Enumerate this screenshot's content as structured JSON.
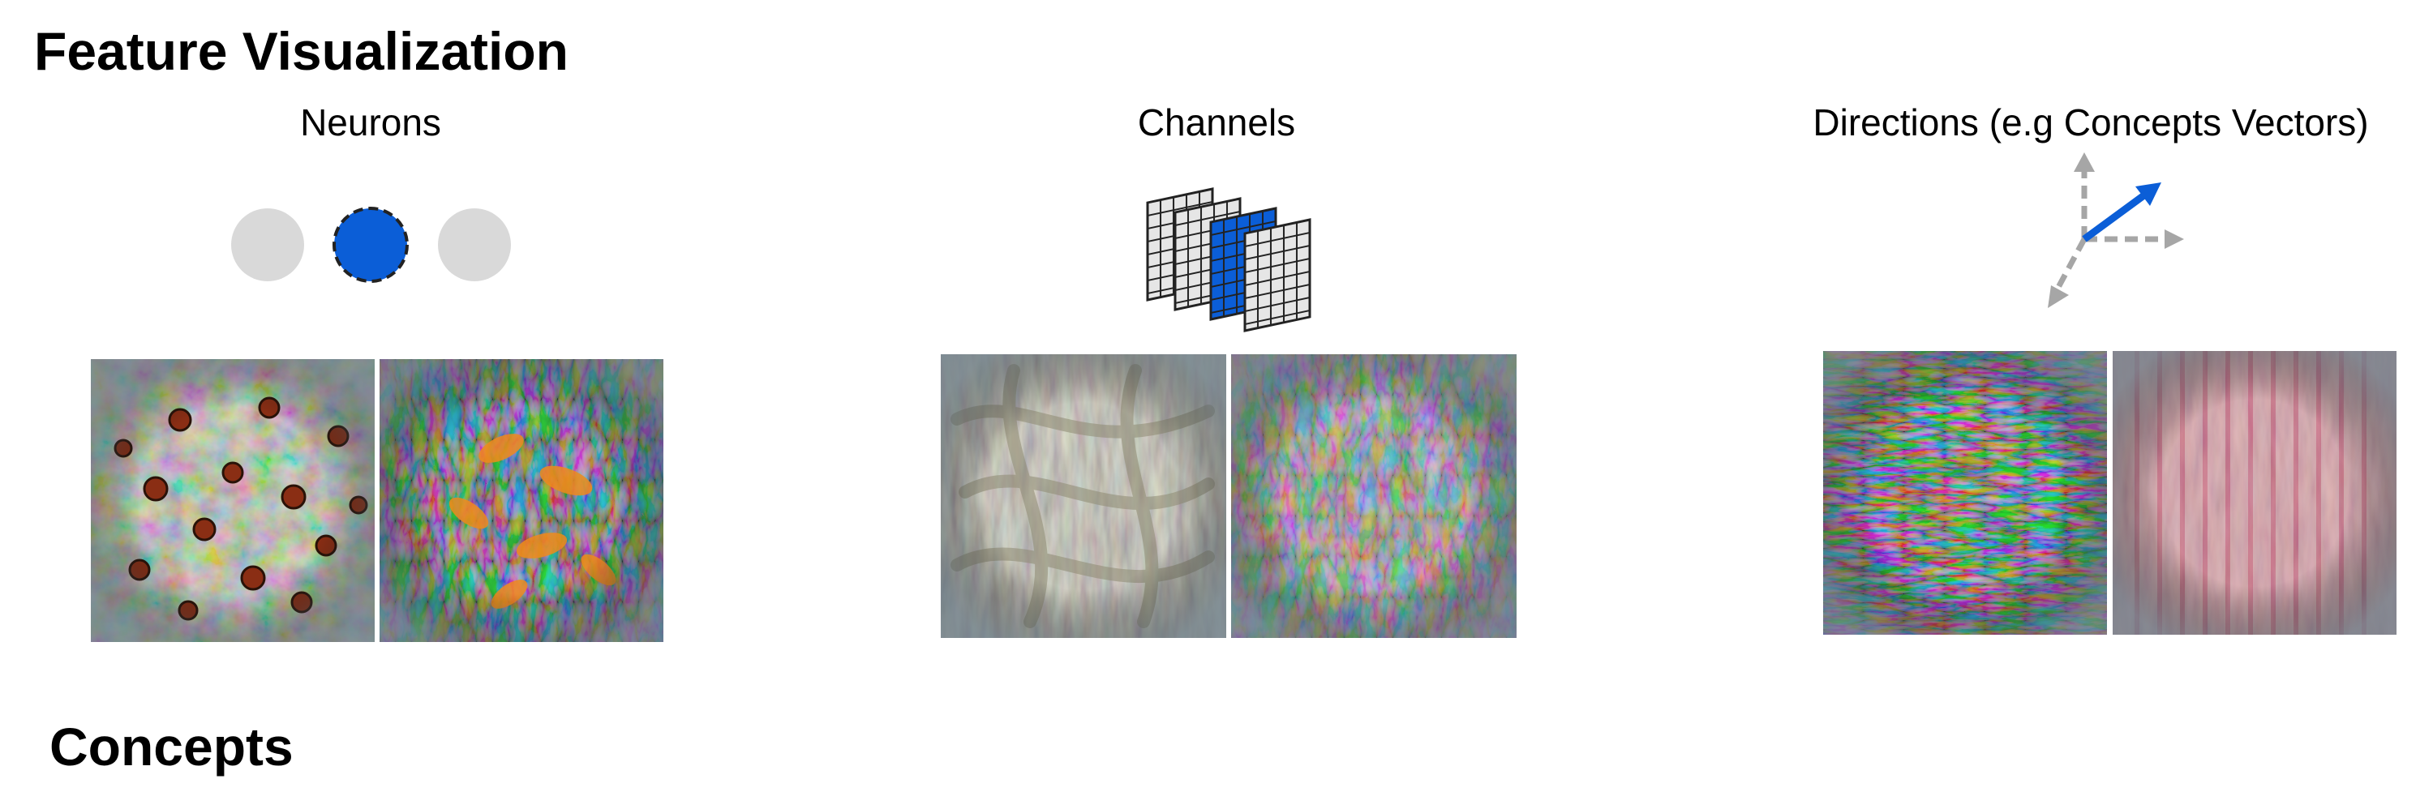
{
  "title": "Feature Visualization",
  "columns": [
    {
      "id": "neurons",
      "label": "Neurons",
      "icon": "neuron-circles-icon",
      "highlight_color": "#0b5ed7",
      "images": [
        "ladybug-feature-visualization-image",
        "goldfish-feature-visualization-image"
      ]
    },
    {
      "id": "channels",
      "label": "Channels",
      "icon": "channel-grids-icon",
      "highlight_color": "#0b5ed7",
      "images": [
        "rope-feature-visualization-image",
        "colorful-texture-feature-visualization-image"
      ]
    },
    {
      "id": "directions",
      "label": "Directions (e.g Concepts Vectors)",
      "icon": "direction-arrows-icon",
      "highlight_color": "#0b5ed7",
      "images": [
        "striped-pattern-feature-visualization-image",
        "pink-knit-feature-visualization-image"
      ]
    }
  ],
  "next_section": "Concepts",
  "colors": {
    "highlight": "#0b5ed7",
    "inactive": "#d9d9d9",
    "axis": "#a6a6a6"
  }
}
